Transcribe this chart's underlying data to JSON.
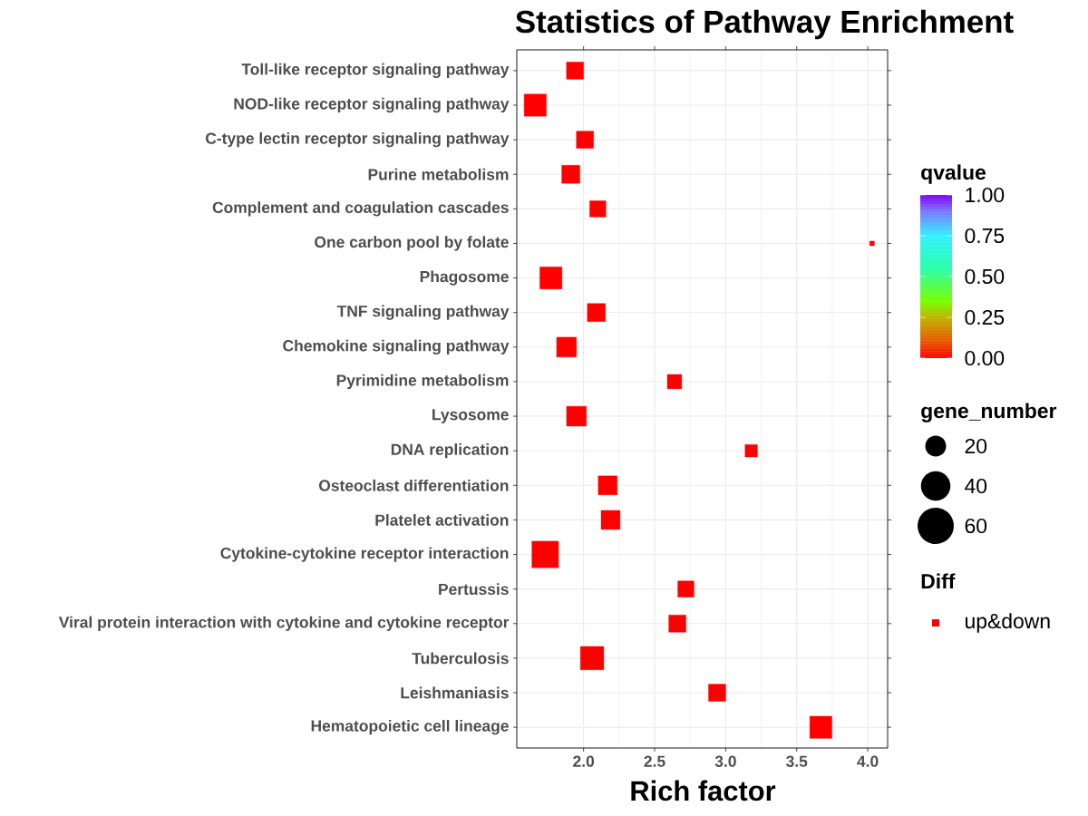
{
  "chart_data": {
    "type": "scatter",
    "title": "Statistics of Pathway Enrichment",
    "xlabel": "Rich factor",
    "clabel": "qvalue",
    "legend_title": "Diff",
    "categories": [
      "Toll-like receptor signaling pathway",
      "NOD-like receptor signaling pathway",
      "C-type lectin receptor signaling pathway",
      "Purine metabolism",
      "Complement and coagulation cascades",
      "One carbon pool by folate",
      "Phagosome",
      "TNF signaling pathway",
      "Chemokine signaling pathway",
      "Pyrimidine metabolism",
      "Lysosome",
      "DNA replication",
      "Osteoclast differentiation",
      "Platelet activation",
      "Cytokine-cytokine receptor interaction",
      "Pertussis",
      "Viral protein interaction with cytokine and cytokine receptor",
      "Tuberculosis",
      "Leishmaniasis",
      "Hematopoietic cell lineage"
    ],
    "series": [
      {
        "name": "up&down",
        "color": "#ff0000",
        "values": [
          1.94,
          1.66,
          2.01,
          1.91,
          2.1,
          4.03,
          1.77,
          2.09,
          1.88,
          2.64,
          1.95,
          3.18,
          2.17,
          2.19,
          1.73,
          2.72,
          2.66,
          2.06,
          2.94,
          3.67
        ],
        "sizes": [
          27,
          45,
          27,
          30,
          24,
          2,
          45,
          30,
          36,
          19,
          36,
          14,
          33,
          33,
          65,
          24,
          27,
          50,
          27,
          45
        ],
        "cvalues": [
          0,
          0,
          0,
          0,
          0,
          0,
          0,
          0,
          0,
          0,
          0,
          0,
          0,
          0,
          0,
          0,
          0,
          0,
          0,
          0
        ]
      }
    ],
    "orientation": "horizontal",
    "annotations": [
      "gene_number"
    ],
    "xlim": [
      1.53,
      4.14
    ],
    "xticks": [
      {
        "value": 2,
        "label": "2.0"
      },
      {
        "value": 2.5,
        "label": "2.5"
      },
      {
        "value": 3,
        "label": "3.0"
      },
      {
        "value": 3.5,
        "label": "3.5"
      },
      {
        "value": 4,
        "label": "4.0"
      }
    ],
    "clim": [
      0,
      1
    ],
    "cticks": [
      {
        "value": 0,
        "label": "0.00"
      },
      {
        "value": 0.25,
        "label": "0.25"
      },
      {
        "value": 0.5,
        "label": "0.50"
      },
      {
        "value": 0.75,
        "label": "0.75"
      },
      {
        "value": 1,
        "label": "1.00"
      }
    ],
    "size_legend": [
      {
        "value": 20,
        "label": "20"
      },
      {
        "value": 40,
        "label": "40"
      },
      {
        "value": 60,
        "label": "60"
      }
    ],
    "marker": "square",
    "grid": true,
    "legend": "right"
  }
}
